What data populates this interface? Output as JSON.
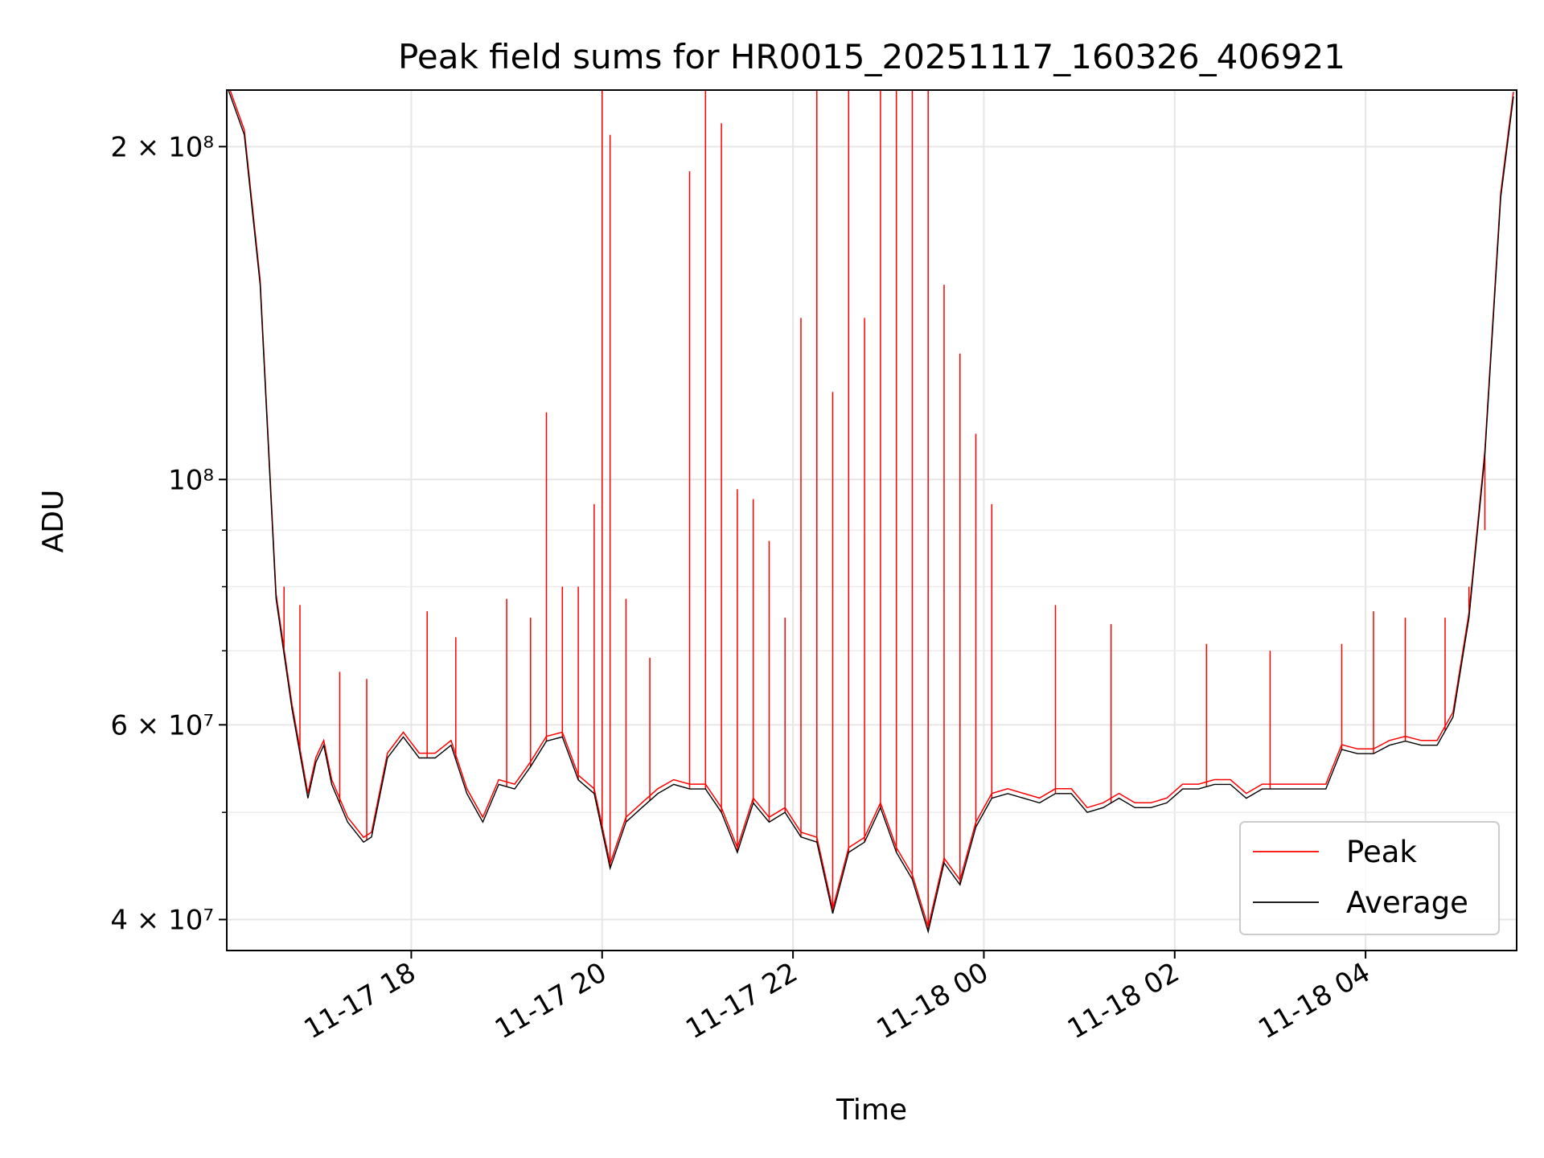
{
  "chart_data": {
    "type": "line",
    "title": "Peak field sums for HR0015_20251117_160326_406921",
    "xlabel": "Time",
    "ylabel": "ADU",
    "yscale": "log",
    "grid": true,
    "legend_position": "lower right",
    "xlim": [
      "2025-11-17 16:04",
      "2025-11-18 05:35"
    ],
    "ylim": [
      37500000,
      225000000
    ],
    "x_ticks": [
      "11-17 18",
      "11-17 20",
      "11-17 22",
      "11-18 00",
      "11-18 02",
      "11-18 04"
    ],
    "y_ticks": [
      {
        "value": 40000000,
        "label": "4 × 10⁷"
      },
      {
        "value": 60000000,
        "label": "6 × 10⁷"
      },
      {
        "value": 100000000,
        "label": "10⁸"
      },
      {
        "value": 200000000,
        "label": "2 × 10⁸"
      }
    ],
    "series": [
      {
        "name": "Average",
        "color": "#000000",
        "x": [
          "2025-11-17 16:05",
          "2025-11-17 16:15",
          "2025-11-17 16:25",
          "2025-11-17 16:35",
          "2025-11-17 16:45",
          "2025-11-17 16:55",
          "2025-11-17 17:00",
          "2025-11-17 17:05",
          "2025-11-17 17:10",
          "2025-11-17 17:20",
          "2025-11-17 17:30",
          "2025-11-17 17:35",
          "2025-11-17 17:45",
          "2025-11-17 17:55",
          "2025-11-17 18:05",
          "2025-11-17 18:15",
          "2025-11-17 18:25",
          "2025-11-17 18:35",
          "2025-11-17 18:45",
          "2025-11-17 18:55",
          "2025-11-17 19:05",
          "2025-11-17 19:15",
          "2025-11-17 19:25",
          "2025-11-17 19:35",
          "2025-11-17 19:45",
          "2025-11-17 19:55",
          "2025-11-17 20:05",
          "2025-11-17 20:15",
          "2025-11-17 20:25",
          "2025-11-17 20:35",
          "2025-11-17 20:45",
          "2025-11-17 20:55",
          "2025-11-17 21:05",
          "2025-11-17 21:15",
          "2025-11-17 21:25",
          "2025-11-17 21:35",
          "2025-11-17 21:45",
          "2025-11-17 21:55",
          "2025-11-17 22:05",
          "2025-11-17 22:15",
          "2025-11-17 22:25",
          "2025-11-17 22:35",
          "2025-11-17 22:45",
          "2025-11-17 22:55",
          "2025-11-17 23:05",
          "2025-11-17 23:15",
          "2025-11-17 23:25",
          "2025-11-17 23:35",
          "2025-11-17 23:45",
          "2025-11-17 23:55",
          "2025-11-18 00:05",
          "2025-11-18 00:15",
          "2025-11-18 00:25",
          "2025-11-18 00:35",
          "2025-11-18 00:45",
          "2025-11-18 00:55",
          "2025-11-18 01:05",
          "2025-11-18 01:15",
          "2025-11-18 01:25",
          "2025-11-18 01:35",
          "2025-11-18 01:45",
          "2025-11-18 01:55",
          "2025-11-18 02:05",
          "2025-11-18 02:15",
          "2025-11-18 02:25",
          "2025-11-18 02:35",
          "2025-11-18 02:45",
          "2025-11-18 02:55",
          "2025-11-18 03:05",
          "2025-11-18 03:15",
          "2025-11-18 03:25",
          "2025-11-18 03:35",
          "2025-11-18 03:45",
          "2025-11-18 03:55",
          "2025-11-18 04:05",
          "2025-11-18 04:15",
          "2025-11-18 04:25",
          "2025-11-18 04:35",
          "2025-11-18 04:45",
          "2025-11-18 04:55",
          "2025-11-18 05:05",
          "2025-11-18 05:15",
          "2025-11-18 05:25",
          "2025-11-18 05:33"
        ],
        "y": [
          225000000,
          205000000,
          150000000,
          78000000,
          62000000,
          51500000,
          55500000,
          57500000,
          53000000,
          49000000,
          47000000,
          47500000,
          56000000,
          58500000,
          56000000,
          56000000,
          57500000,
          52000000,
          49000000,
          53000000,
          52500000,
          55000000,
          58000000,
          58500000,
          53500000,
          52000000,
          44500000,
          49000000,
          50500000,
          52000000,
          53000000,
          52500000,
          52500000,
          50000000,
          46000000,
          51000000,
          49000000,
          50000000,
          47500000,
          47000000,
          40500000,
          46000000,
          47000000,
          50500000,
          46000000,
          43500000,
          39000000,
          45000000,
          43000000,
          48500000,
          51500000,
          52000000,
          51500000,
          51000000,
          52000000,
          52000000,
          50000000,
          50500000,
          51500000,
          50500000,
          50500000,
          51000000,
          52500000,
          52500000,
          53000000,
          53000000,
          51500000,
          52500000,
          52500000,
          52500000,
          52500000,
          52500000,
          57000000,
          56500000,
          56500000,
          57500000,
          58000000,
          57500000,
          57500000,
          61000000,
          75000000,
          105000000,
          180000000,
          222000000
        ]
      },
      {
        "name": "Peak",
        "color": "#ff0000",
        "x": [
          "2025-11-17 16:40",
          "2025-11-17 16:50",
          "2025-11-17 17:15",
          "2025-11-17 17:32",
          "2025-11-17 18:10",
          "2025-11-17 18:28",
          "2025-11-17 19:00",
          "2025-11-17 19:15",
          "2025-11-17 19:25",
          "2025-11-17 19:35",
          "2025-11-17 19:45",
          "2025-11-17 19:55",
          "2025-11-17 20:00",
          "2025-11-17 20:05",
          "2025-11-17 20:15",
          "2025-11-17 20:30",
          "2025-11-17 20:55",
          "2025-11-17 21:05",
          "2025-11-17 21:15",
          "2025-11-17 21:25",
          "2025-11-17 21:35",
          "2025-11-17 21:45",
          "2025-11-17 21:55",
          "2025-11-17 22:05",
          "2025-11-17 22:15",
          "2025-11-17 22:25",
          "2025-11-17 22:35",
          "2025-11-17 22:45",
          "2025-11-17 22:55",
          "2025-11-17 23:05",
          "2025-11-17 23:15",
          "2025-11-17 23:25",
          "2025-11-17 23:35",
          "2025-11-17 23:45",
          "2025-11-17 23:55",
          "2025-11-18 00:05",
          "2025-11-18 00:45",
          "2025-11-18 01:20",
          "2025-11-18 02:20",
          "2025-11-18 03:00",
          "2025-11-18 03:45",
          "2025-11-18 04:05",
          "2025-11-18 04:25",
          "2025-11-18 04:50",
          "2025-11-18 05:05",
          "2025-11-18 05:15"
        ],
        "y": [
          80000000,
          77000000,
          67000000,
          66000000,
          76000000,
          72000000,
          78000000,
          75000000,
          115000000,
          80000000,
          80000000,
          95000000,
          225000000,
          205000000,
          78000000,
          69000000,
          190000000,
          225000000,
          210000000,
          98000000,
          96000000,
          88000000,
          75000000,
          140000000,
          225000000,
          120000000,
          225000000,
          140000000,
          225000000,
          225000000,
          225000000,
          225000000,
          150000000,
          130000000,
          110000000,
          95000000,
          77000000,
          74000000,
          71000000,
          70000000,
          71000000,
          76000000,
          75000000,
          75000000,
          80000000,
          90000000
        ]
      }
    ]
  }
}
